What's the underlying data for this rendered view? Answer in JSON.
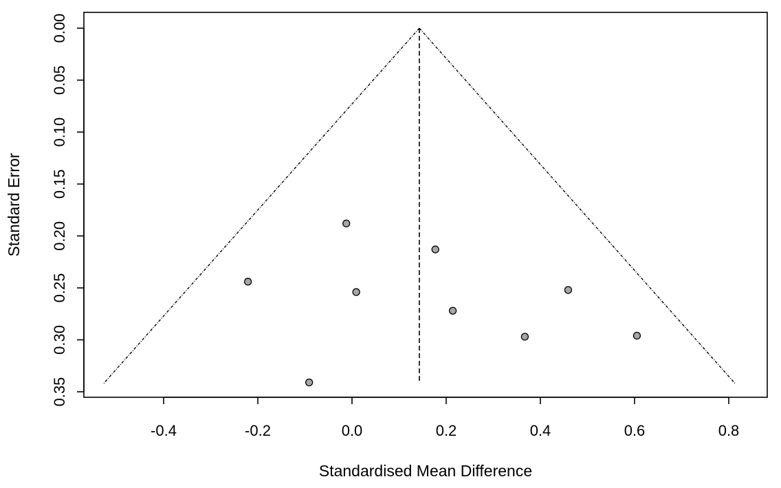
{
  "chart_data": {
    "type": "scatter",
    "variant": "funnel",
    "title": "",
    "xlabel": "Standardised Mean Difference",
    "ylabel": "Standard Error",
    "xlim": [
      -0.55,
      0.85
    ],
    "ylim": [
      0.0,
      0.35
    ],
    "y_reversed": true,
    "grid": false,
    "x_ticks": [
      -0.4,
      -0.2,
      0.0,
      0.2,
      0.4,
      0.6,
      0.8
    ],
    "x_tick_labels": [
      "-0.4",
      "-0.2",
      "0.0",
      "0.2",
      "0.4",
      "0.6",
      "0.8"
    ],
    "y_ticks": [
      0.0,
      0.05,
      0.1,
      0.15,
      0.2,
      0.25,
      0.3,
      0.35
    ],
    "y_tick_labels": [
      "0.00",
      "0.05",
      "0.10",
      "0.15",
      "0.20",
      "0.25",
      "0.30",
      "0.35"
    ],
    "pooled_estimate": 0.143,
    "funnel_max_se": 0.342,
    "ci_multiplier": 1.96,
    "points": [
      {
        "x": -0.012,
        "y": 0.188
      },
      {
        "x": 0.177,
        "y": 0.213
      },
      {
        "x": -0.221,
        "y": 0.244
      },
      {
        "x": 0.009,
        "y": 0.254
      },
      {
        "x": 0.459,
        "y": 0.252
      },
      {
        "x": 0.214,
        "y": 0.272
      },
      {
        "x": 0.367,
        "y": 0.297
      },
      {
        "x": 0.605,
        "y": 0.296
      },
      {
        "x": -0.091,
        "y": 0.341
      }
    ],
    "colors": {
      "point_fill": "#a6a6a6",
      "point_stroke": "#000000",
      "lines": "#000000"
    }
  }
}
